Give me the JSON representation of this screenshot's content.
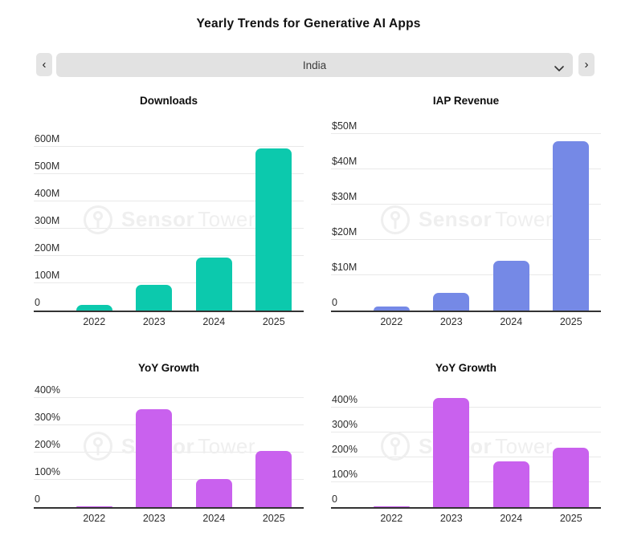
{
  "page": {
    "title": "Yearly Trends for Generative AI Apps"
  },
  "nav": {
    "prev_label": "‹",
    "next_label": "›",
    "region_selector": {
      "value": "India"
    }
  },
  "watermark": {
    "brand_bold": "Sensor",
    "brand_light": "Tower"
  },
  "colors": {
    "downloads_bar": "#0cc9ad",
    "revenue_bar": "#7589e6",
    "growth_bar": "#c961ee",
    "gridline": "#e9e9e9",
    "axis": "#333333",
    "control_bg": "#e2e2e2"
  },
  "chart_data": [
    {
      "type": "bar",
      "title": "Downloads",
      "categories": [
        "2022",
        "2023",
        "2024",
        "2025"
      ],
      "values": [
        21,
        95,
        195,
        595
      ],
      "unit": "millions of downloads",
      "xlabel": "",
      "ylabel": "",
      "ylim": [
        0,
        650
      ],
      "grid": true,
      "legend": "none",
      "bar_color": "#0cc9ad",
      "yticks": [
        {
          "label": "0",
          "value": 0
        },
        {
          "label": "100M",
          "value": 100
        },
        {
          "label": "200M",
          "value": 200
        },
        {
          "label": "300M",
          "value": 300
        },
        {
          "label": "400M",
          "value": 400
        },
        {
          "label": "500M",
          "value": 500
        },
        {
          "label": "600M",
          "value": 600
        }
      ]
    },
    {
      "type": "bar",
      "title": "IAP Revenue",
      "categories": [
        "2022",
        "2023",
        "2024",
        "2025"
      ],
      "values": [
        1.2,
        5,
        14,
        48
      ],
      "unit": "USD millions",
      "xlabel": "",
      "ylabel": "",
      "ylim": [
        0,
        51
      ],
      "grid": true,
      "legend": "none",
      "bar_color": "#7589e6",
      "yticks": [
        {
          "label": "0",
          "value": 0
        },
        {
          "label": "$10M",
          "value": 10
        },
        {
          "label": "$20M",
          "value": 20
        },
        {
          "label": "$30M",
          "value": 30
        },
        {
          "label": "$40M",
          "value": 40
        },
        {
          "label": "$50M",
          "value": 50
        }
      ]
    },
    {
      "type": "bar",
      "title": "YoY Growth",
      "categories": [
        "2022",
        "2023",
        "2024",
        "2025"
      ],
      "values": [
        3,
        360,
        103,
        205
      ],
      "unit": "percent (downloads growth)",
      "xlabel": "",
      "ylabel": "",
      "ylim": [
        0,
        440
      ],
      "grid": true,
      "legend": "none",
      "bar_color": "#c961ee",
      "yticks": [
        {
          "label": "0",
          "value": 0
        },
        {
          "label": "100%",
          "value": 100
        },
        {
          "label": "200%",
          "value": 200
        },
        {
          "label": "300%",
          "value": 300
        },
        {
          "label": "400%",
          "value": 400
        }
      ]
    },
    {
      "type": "bar",
      "title": "YoY Growth",
      "categories": [
        "2022",
        "2023",
        "2024",
        "2025"
      ],
      "values": [
        3,
        440,
        185,
        240
      ],
      "unit": "percent (revenue growth)",
      "xlabel": "",
      "ylabel": "",
      "ylim": [
        0,
        480
      ],
      "grid": true,
      "legend": "none",
      "bar_color": "#c961ee",
      "yticks": [
        {
          "label": "0",
          "value": 0
        },
        {
          "label": "100%",
          "value": 100
        },
        {
          "label": "200%",
          "value": 200
        },
        {
          "label": "300%",
          "value": 300
        },
        {
          "label": "400%",
          "value": 400
        }
      ]
    }
  ]
}
